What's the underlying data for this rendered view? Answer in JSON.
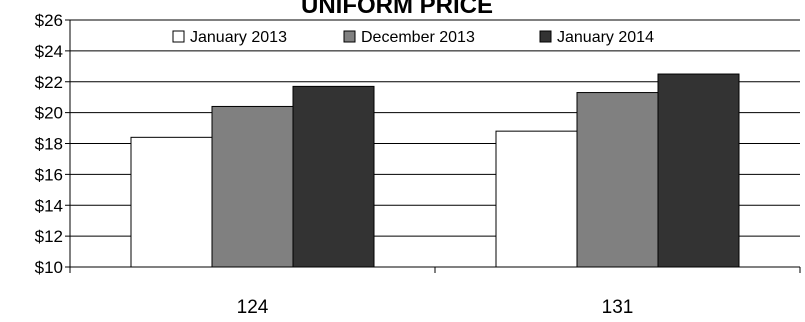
{
  "chart_data": {
    "type": "bar",
    "title": "UNIFORM PRICE",
    "categories": [
      "124",
      "131"
    ],
    "series": [
      {
        "name": "January 2013",
        "values": [
          18.4,
          18.8
        ],
        "color": "#ffffff"
      },
      {
        "name": "December 2013",
        "values": [
          20.4,
          21.3
        ],
        "color": "#808080"
      },
      {
        "name": "January 2014",
        "values": [
          21.7,
          22.5
        ],
        "color": "#333333"
      }
    ],
    "ylim": [
      10,
      26
    ],
    "yticks": [
      10,
      12,
      14,
      16,
      18,
      20,
      22,
      24,
      26
    ],
    "ytick_labels": [
      "$10",
      "$12",
      "$14",
      "$16",
      "$18",
      "$20",
      "$22",
      "$24",
      "$26"
    ],
    "grid": true,
    "legend_position": "top"
  }
}
